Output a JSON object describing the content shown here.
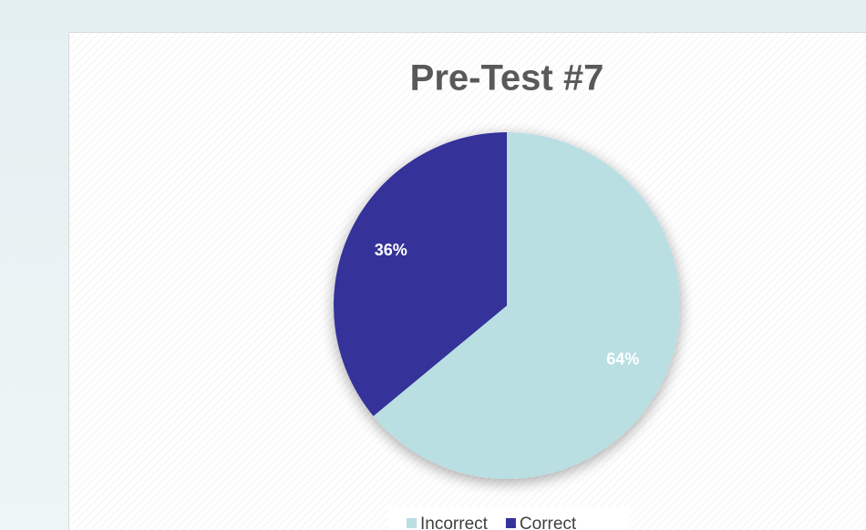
{
  "chart_data": {
    "type": "pie",
    "title": "Pre-Test #7",
    "categories": [
      "Incorrect",
      "Correct"
    ],
    "values": [
      64,
      36
    ],
    "value_labels": [
      "64%",
      "36%"
    ],
    "colors": [
      "#b9dfe3",
      "#35339a"
    ],
    "legend": "bottom"
  }
}
